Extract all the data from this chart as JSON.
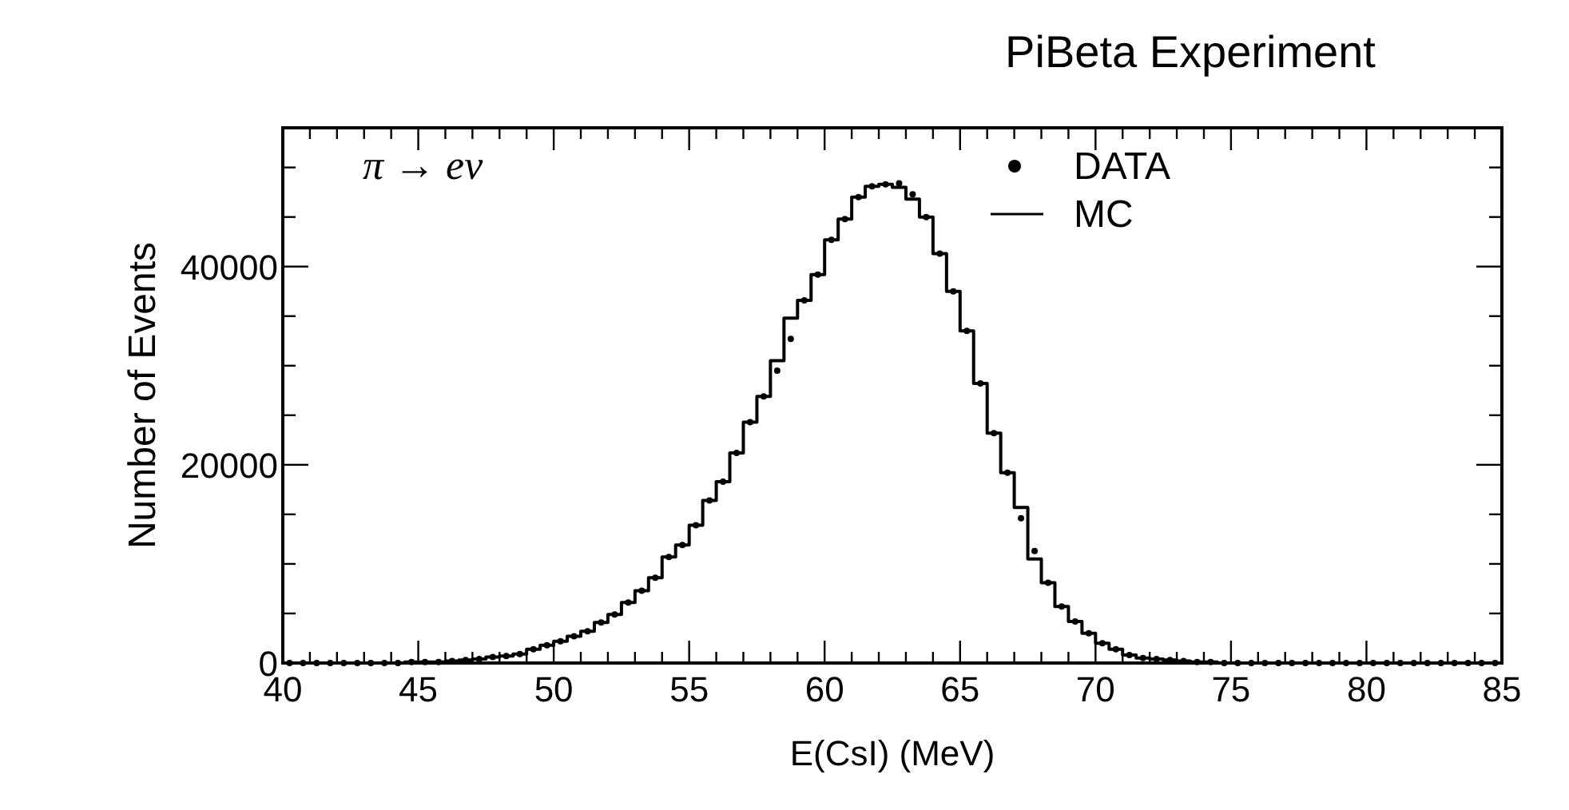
{
  "chart_data": {
    "type": "step",
    "title": "PiBeta Experiment",
    "xlabel": "E(CsI) (MeV)",
    "ylabel": "Number of Events",
    "annotations": [
      "π → eν"
    ],
    "xlim": [
      40,
      85
    ],
    "ylim": [
      0,
      54000
    ],
    "xticks": [
      40,
      {
        "value": 41,
        "label": null
      },
      {
        "value": 42,
        "label": null
      },
      {
        "value": 43,
        "label": null
      },
      {
        "value": 44,
        "label": null
      },
      45,
      {
        "value": 46,
        "label": null
      },
      {
        "value": 47,
        "label": null
      },
      {
        "value": 48,
        "label": null
      },
      {
        "value": 49,
        "label": null
      },
      50,
      {
        "value": 51,
        "label": null
      },
      {
        "value": 52,
        "label": null
      },
      {
        "value": 53,
        "label": null
      },
      {
        "value": 54,
        "label": null
      },
      55,
      {
        "value": 56,
        "label": null
      },
      {
        "value": 57,
        "label": null
      },
      {
        "value": 58,
        "label": null
      },
      {
        "value": 59,
        "label": null
      },
      60,
      {
        "value": 61,
        "label": null
      },
      {
        "value": 62,
        "label": null
      },
      {
        "value": 63,
        "label": null
      },
      {
        "value": 64,
        "label": null
      },
      65,
      {
        "value": 66,
        "label": null
      },
      {
        "value": 67,
        "label": null
      },
      {
        "value": 68,
        "label": null
      },
      {
        "value": 69,
        "label": null
      },
      70,
      {
        "value": 71,
        "label": null
      },
      {
        "value": 72,
        "label": null
      },
      {
        "value": 73,
        "label": null
      },
      {
        "value": 74,
        "label": null
      },
      75,
      {
        "value": 76,
        "label": null
      },
      {
        "value": 77,
        "label": null
      },
      {
        "value": 78,
        "label": null
      },
      {
        "value": 79,
        "label": null
      },
      80,
      {
        "value": 81,
        "label": null
      },
      {
        "value": 82,
        "label": null
      },
      {
        "value": 83,
        "label": null
      },
      {
        "value": 84,
        "label": null
      },
      85
    ],
    "yticks": [
      0,
      {
        "value": 5000,
        "label": null
      },
      {
        "value": 10000,
        "label": null
      },
      {
        "value": 15000,
        "label": null
      },
      20000,
      {
        "value": 25000,
        "label": null
      },
      {
        "value": 30000,
        "label": null
      },
      {
        "value": 35000,
        "label": null
      },
      40000,
      {
        "value": 45000,
        "label": null
      },
      {
        "value": 50000,
        "label": null
      }
    ],
    "x": [
      40.25,
      40.75,
      41.25,
      41.75,
      42.25,
      42.75,
      43.25,
      43.75,
      44.25,
      44.75,
      45.25,
      45.75,
      46.25,
      46.75,
      47.25,
      47.75,
      48.25,
      48.75,
      49.25,
      49.75,
      50.25,
      50.75,
      51.25,
      51.75,
      52.25,
      52.75,
      53.25,
      53.75,
      54.25,
      54.75,
      55.25,
      55.75,
      56.25,
      56.75,
      57.25,
      57.75,
      58.25,
      58.75,
      59.25,
      59.75,
      60.25,
      60.75,
      61.25,
      61.75,
      62.25,
      62.75,
      63.25,
      63.75,
      64.25,
      64.75,
      65.25,
      65.75,
      66.25,
      66.75,
      67.25,
      67.75,
      68.25,
      68.75,
      69.25,
      69.75,
      70.25,
      70.75,
      71.25,
      71.75,
      72.25,
      72.75,
      73.25,
      73.75,
      74.25,
      74.75,
      75.25,
      75.75,
      76.25,
      76.75,
      77.25,
      77.75,
      78.25,
      78.75,
      79.25,
      79.75,
      80.25,
      80.75,
      81.25,
      81.75,
      82.25,
      82.75,
      83.25,
      83.75,
      84.25,
      84.75
    ],
    "series": [
      {
        "name": "DATA",
        "type": "scatter",
        "marker": "circle",
        "color": "#000000",
        "values": [
          0,
          0,
          0,
          0,
          0,
          0,
          0,
          0,
          0,
          100,
          100,
          100,
          200,
          300,
          400,
          600,
          700,
          900,
          1400,
          1800,
          2200,
          2700,
          3200,
          4100,
          4900,
          6100,
          7300,
          8600,
          10700,
          11900,
          13900,
          16400,
          18300,
          21200,
          24300,
          26900,
          29500,
          32700,
          36600,
          39200,
          42700,
          44800,
          47000,
          48100,
          48300,
          48400,
          47300,
          45000,
          41300,
          37500,
          33500,
          28200,
          23200,
          19200,
          14600,
          11300,
          8100,
          5700,
          4200,
          3000,
          2000,
          1400,
          800,
          500,
          400,
          300,
          200,
          100,
          100,
          0,
          0,
          0,
          0,
          0,
          0,
          0,
          0,
          0,
          0,
          0,
          0,
          0,
          0,
          0,
          0,
          0,
          0,
          0,
          0,
          0
        ]
      },
      {
        "name": "MC",
        "color": "#000000",
        "values": [
          0,
          0,
          0,
          0,
          0,
          0,
          0,
          0,
          0,
          100,
          100,
          100,
          200,
          300,
          400,
          600,
          700,
          900,
          1400,
          1800,
          2200,
          2700,
          3200,
          4100,
          4900,
          6100,
          7300,
          8600,
          10700,
          11900,
          13900,
          16400,
          18300,
          21200,
          24300,
          26900,
          30500,
          34800,
          36600,
          39200,
          42700,
          44800,
          47000,
          48100,
          48300,
          48000,
          46800,
          45000,
          41300,
          37500,
          33500,
          28200,
          23200,
          19200,
          15700,
          10500,
          8100,
          5700,
          4200,
          3000,
          2000,
          1400,
          800,
          500,
          400,
          300,
          200,
          100,
          100,
          0,
          0,
          0,
          0,
          0,
          0,
          0,
          0,
          0,
          0,
          0,
          0,
          0,
          0,
          0,
          0,
          0,
          0,
          0,
          0,
          0
        ]
      }
    ],
    "legend": "top right"
  }
}
